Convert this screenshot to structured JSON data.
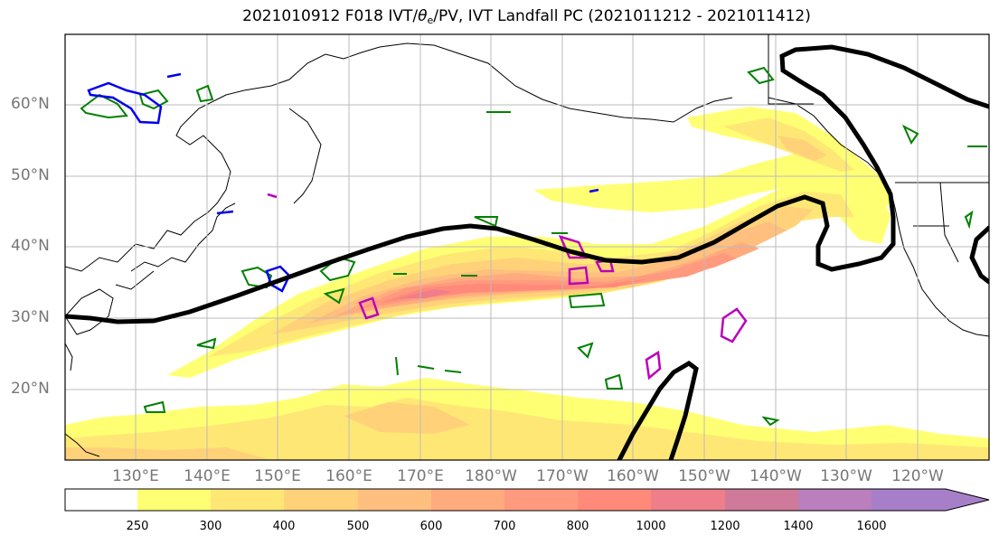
{
  "title": {
    "prefix": "2021010912 F018 IVT/",
    "theta_symbol": "θ",
    "theta_sub": "e",
    "suffix": "/PV, IVT Landfall PC (2021011212 - 2021011412)"
  },
  "lat_labels": [
    "60°N",
    "50°N",
    "40°N",
    "30°N",
    "20°N"
  ],
  "lon_labels": [
    "130°E",
    "140°E",
    "150°E",
    "160°E",
    "170°E",
    "180°W",
    "170°W",
    "160°W",
    "150°W",
    "140°W",
    "130°W",
    "120°W"
  ],
  "colorbar": {
    "ticks": [
      "250",
      "300",
      "400",
      "500",
      "600",
      "700",
      "800",
      "1000",
      "1200",
      "1400",
      "1600"
    ],
    "colors": [
      "#ffffff",
      "#ffff73",
      "#ffe776",
      "#ffd27a",
      "#ffbf7e",
      "#ffab7e",
      "#ff9a7e",
      "#ff8a7a",
      "#ee7e8a",
      "#cf7a9a",
      "#ba7fbc",
      "#a77fc9"
    ]
  },
  "map": {
    "projection": "plate-carree",
    "lat_range": [
      10,
      70
    ],
    "lon_range": [
      120,
      250
    ],
    "gridlines": true,
    "fill_variable": "IVT",
    "black_contour": "IVT landfall principal component",
    "green_contour": "theta-e",
    "blue_magenta_contour": "PV"
  }
}
